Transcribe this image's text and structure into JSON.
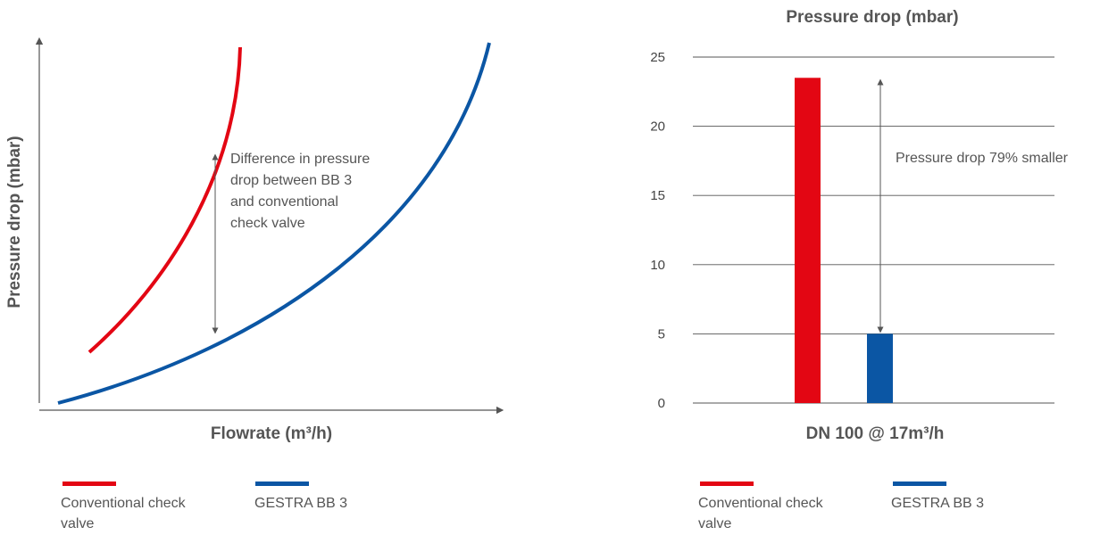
{
  "colors": {
    "conventional": "#e30613",
    "gestra": "#0b56a4",
    "axis": "#555555",
    "grid": "#555555"
  },
  "chart_data": [
    {
      "type": "line",
      "xlabel": "Flowrate (m³/h)",
      "ylabel": "Pressure drop (mbar)",
      "annotation": "Difference in pressure drop between BB 3 and conventional check valve",
      "annotation_lines": [
        "Difference in pressure",
        "drop between BB 3",
        "and conventional",
        "check valve"
      ],
      "series": [
        {
          "name": "Conventional check valve",
          "color": "#e30613"
        },
        {
          "name": "GESTRA BB 3",
          "color": "#0b56a4"
        }
      ],
      "legend": {
        "placement": "bottom",
        "items": [
          {
            "line1": "Conventional check",
            "line2": "valve"
          },
          {
            "line1": "GESTRA BB 3",
            "line2": ""
          }
        ]
      }
    },
    {
      "type": "bar",
      "title": "Pressure drop (mbar)",
      "xlabel": "DN 100 @ 17m³/h",
      "yticks": [
        "0",
        "5",
        "10",
        "15",
        "20",
        "25"
      ],
      "ylim": [
        0,
        25
      ],
      "grid": true,
      "series": [
        {
          "name": "Conventional check valve",
          "value": 23.5,
          "color": "#e30613"
        },
        {
          "name": "GESTRA BB 3",
          "value": 5,
          "color": "#0b56a4"
        }
      ],
      "annotation": "Pressure drop 79% smaller",
      "legend": {
        "placement": "bottom",
        "items": [
          {
            "line1": "Conventional check",
            "line2": "valve"
          },
          {
            "line1": "GESTRA BB 3",
            "line2": ""
          }
        ]
      }
    }
  ]
}
